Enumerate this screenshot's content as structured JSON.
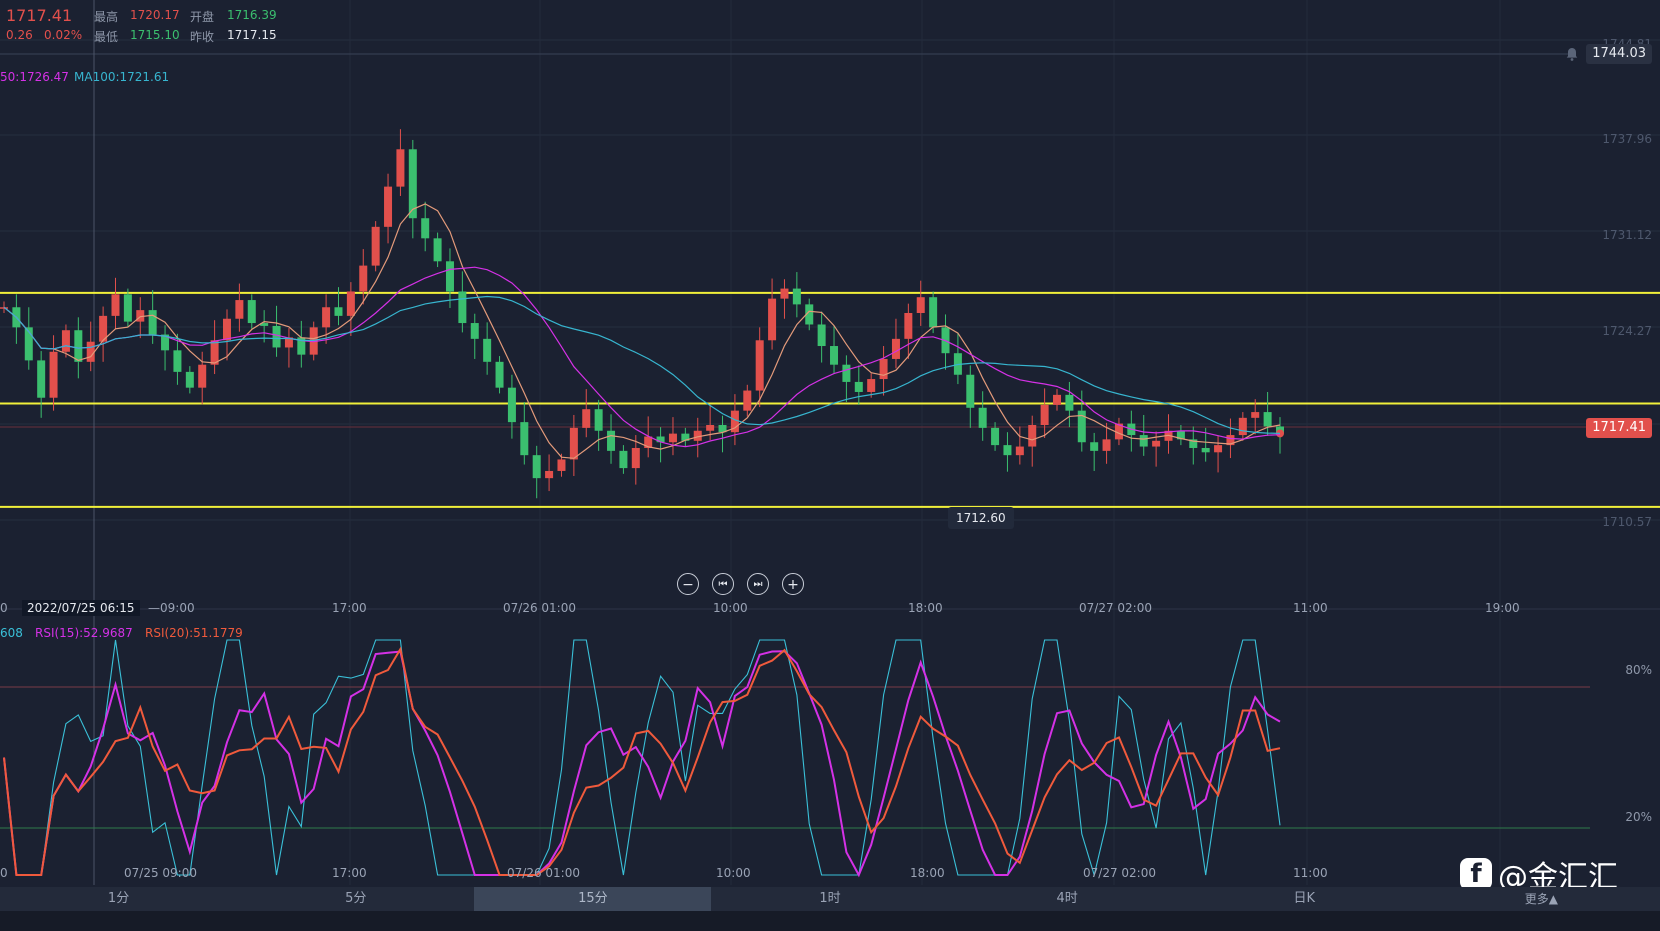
{
  "header": {
    "last_price": "1717.41",
    "change": "0.26",
    "change_pct": "0.02%",
    "high_label": "最高",
    "high_value": "1720.17",
    "open_label": "开盘",
    "open_value": "1716.39",
    "low_label": "最低",
    "low_value": "1715.10",
    "prev_close_label": "昨收",
    "prev_close_value": "1717.15"
  },
  "ma_legend": {
    "ma50": "50:1726.47",
    "ma100": "MA100:1721.61"
  },
  "price_axis": {
    "ticks": [
      "1744.81",
      "1737.96",
      "1731.12",
      "1724.27",
      "1710.57"
    ],
    "top_pill": "1744.03",
    "last_pill": "1717.41",
    "low_annotation": "1712.60"
  },
  "x_axis_main": {
    "crosshair_label": "2022/07/25 06:15",
    "labels": [
      "0",
      "—09:00",
      "17:00",
      "07/26 01:00",
      "10:00",
      "18:00",
      "07/27 02:00",
      "11:00",
      "19:00"
    ]
  },
  "rsi_legend": {
    "rsi_prev": "608",
    "rsi15": "RSI(15):52.9687",
    "rsi20": "RSI(20):51.1779",
    "level_high": "80%",
    "level_low": "20%"
  },
  "x_axis_rsi": {
    "labels": [
      "0",
      "07/25 09:00",
      "17:00",
      "07/26 01:00",
      "10:00",
      "18:00",
      "07/27 02:00",
      "11:00"
    ]
  },
  "controls": {
    "zoom_out": "−",
    "skip_back": "⏮",
    "skip_fwd": "⏭",
    "zoom_in": "+"
  },
  "tabs": [
    "1分",
    "5分",
    "15分",
    "1时",
    "4时",
    "日K"
  ],
  "active_tab": "15分",
  "more_label": "更多▲",
  "watermark": {
    "logo": "f",
    "text": "@金汇汇"
  },
  "colors": {
    "background": "#1b2131",
    "up": "#e2504c",
    "down": "#3bbf6f",
    "ma_orange": "#e39a7a",
    "ma_magenta": "#d431e6",
    "ma_cyan": "#37b5cf",
    "support_resistance": "#f1f03a",
    "rsi_red": "#f05a3c",
    "rsi_magenta": "#d431e6",
    "rsi_cyan": "#3ac0d8"
  },
  "chart_data": {
    "type": "candlestick",
    "symbol_last": 1717.41,
    "horizontal_levels": [
      1727.2,
      1719.5,
      1712.3
    ],
    "price_range": [
      1708.6,
      1744.81
    ],
    "candles_ohlc_sample_close": [
      1726.2,
      1724.8,
      1722.5,
      1719.9,
      1723.1,
      1724.6,
      1722.4,
      1723.8,
      1725.6,
      1727.1,
      1725.2,
      1726.0,
      1724.3,
      1723.2,
      1721.7,
      1720.6,
      1722.2,
      1723.9,
      1725.4,
      1726.7,
      1725.1,
      1724.9,
      1723.4,
      1724.1,
      1722.9,
      1724.8,
      1726.2,
      1725.6,
      1727.3,
      1729.1,
      1731.8,
      1734.6,
      1737.2,
      1732.4,
      1731.0,
      1729.4,
      1727.3,
      1725.1,
      1724.0,
      1722.4,
      1720.6,
      1718.2,
      1715.9,
      1714.3,
      1714.8,
      1715.6,
      1717.8,
      1719.1,
      1717.6,
      1716.2,
      1715.0,
      1716.4,
      1717.2,
      1716.8,
      1717.4,
      1716.9,
      1717.6,
      1718.0,
      1717.5,
      1719.0,
      1720.4,
      1723.9,
      1726.8,
      1727.5,
      1726.4,
      1725.0,
      1723.5,
      1722.2,
      1721.0,
      1720.3,
      1721.2,
      1722.6,
      1724.0,
      1725.8,
      1726.9,
      1724.8,
      1723.0,
      1721.5,
      1719.2,
      1717.8,
      1716.6,
      1715.9,
      1716.5,
      1718.0,
      1719.4,
      1720.1,
      1719.0,
      1716.8,
      1716.2,
      1717.0,
      1718.1,
      1717.3,
      1716.5,
      1716.9,
      1717.6,
      1717.0,
      1716.4,
      1716.1,
      1716.6,
      1717.3,
      1718.5,
      1718.9,
      1717.9,
      1717.41
    ],
    "rsi_levels": [
      80,
      20
    ]
  }
}
